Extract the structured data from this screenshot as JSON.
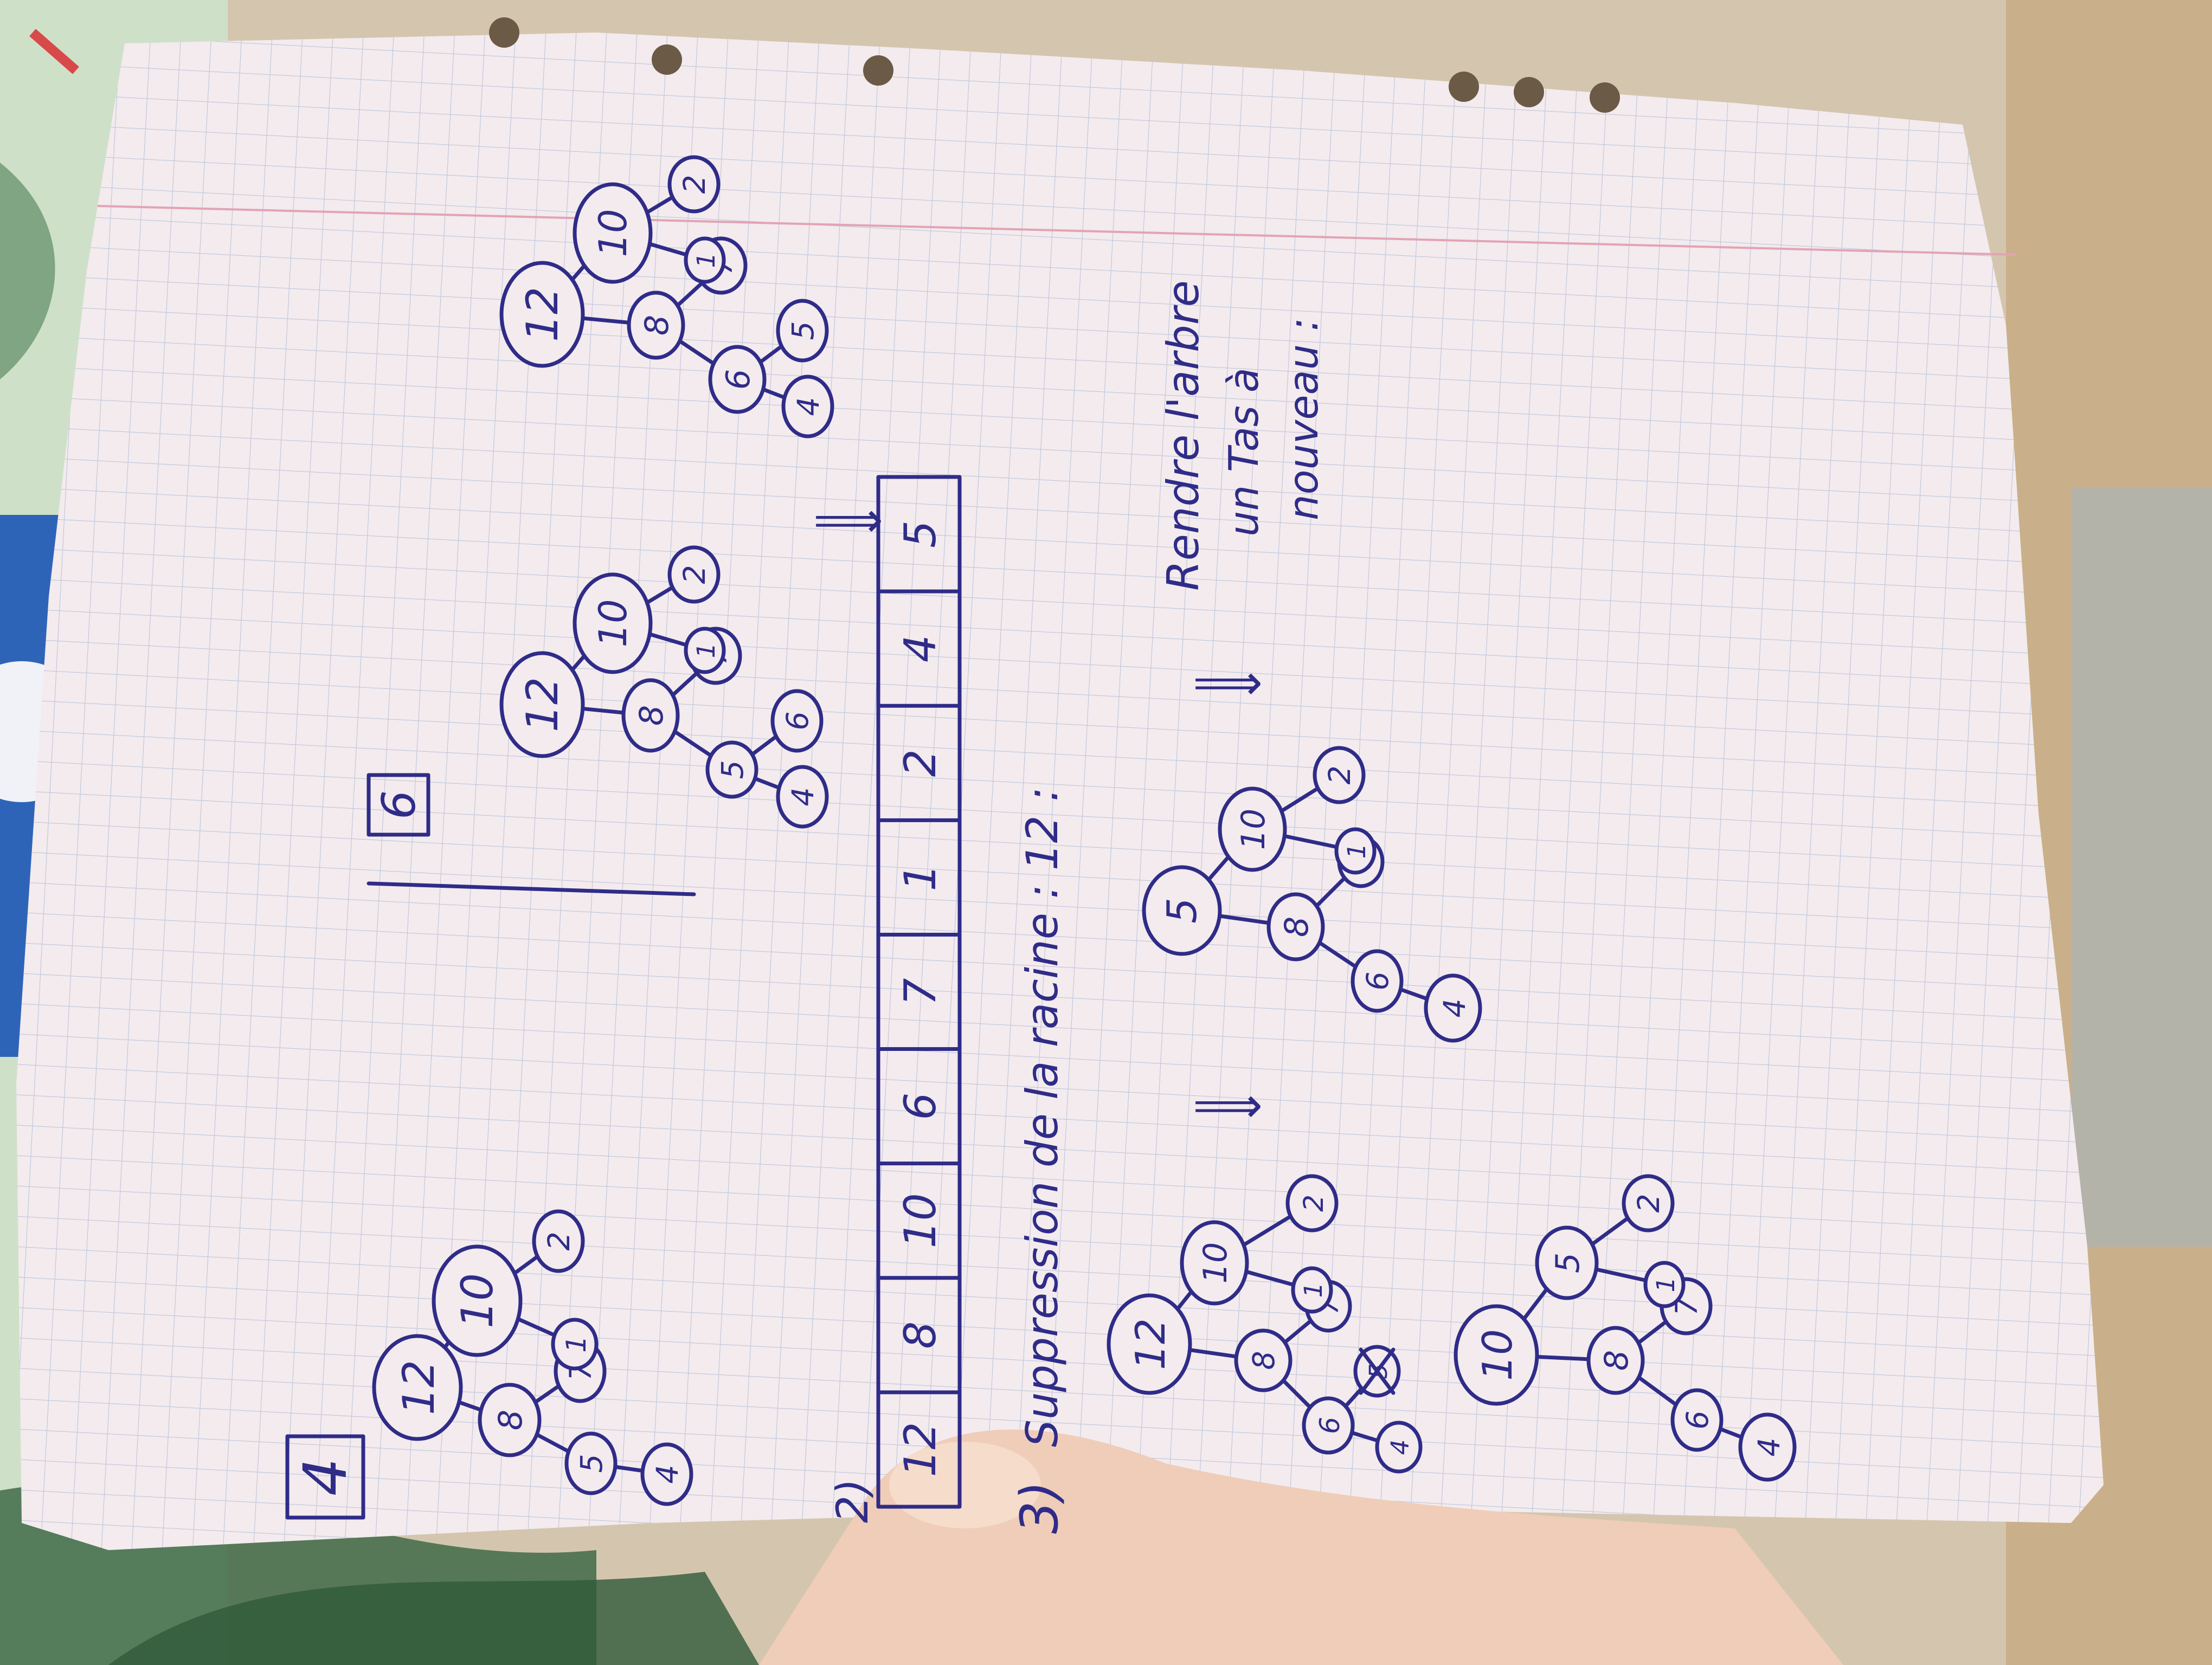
{
  "photo": {
    "description_free": true,
    "colors": {
      "ink": "#2f2c88",
      "paper": "#f3ebee",
      "grid": "#b9c2d8",
      "margin_line": "#e3a3b4",
      "table": "#d8c09a",
      "skin": "#efcdb8"
    }
  },
  "page": {
    "section_labels": {
      "four": "4",
      "six": "6"
    },
    "item_numbers": {
      "two": "2)",
      "three": "3)"
    },
    "heading_suppression": "Suppression de la racine : 12 :",
    "note_lines": [
      "Rendre l'arbre",
      "un Tas à",
      "nouveau :"
    ],
    "arrow": "⟹",
    "array": [
      "12",
      "8",
      "10",
      "6",
      "7",
      "1",
      "2",
      "4",
      "5"
    ],
    "trees": {
      "tree_a": [
        "12",
        "8",
        "10",
        "5",
        "7",
        "1",
        "2",
        "4"
      ],
      "tree_b": [
        "12",
        "8",
        "10",
        "5",
        "7",
        "1",
        "2",
        "4",
        "6"
      ],
      "tree_c": [
        "12",
        "8",
        "10",
        "6",
        "7",
        "1",
        "2",
        "4",
        "5"
      ],
      "tree_d": [
        "12",
        "8",
        "10",
        "6",
        "7",
        "1",
        "2",
        "4",
        "5"
      ],
      "tree_e": [
        "5",
        "8",
        "10",
        "6",
        "7",
        "1",
        "2",
        "4"
      ],
      "tree_f": [
        "10",
        "8",
        "5",
        "6",
        "7",
        "1",
        "2",
        "4"
      ]
    }
  }
}
